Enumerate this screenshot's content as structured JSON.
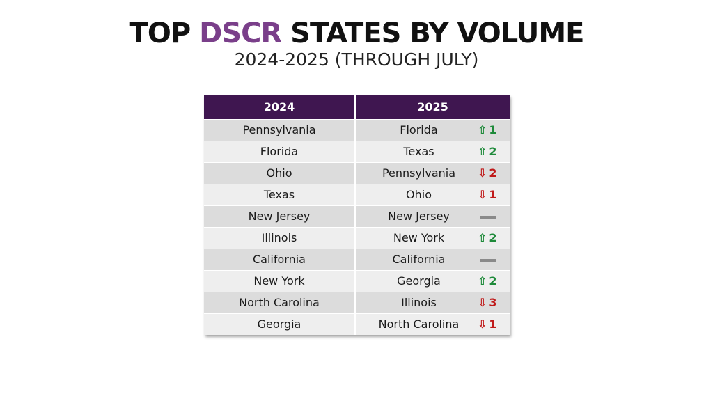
{
  "title": {
    "prefix": "TOP ",
    "accent": "DSCR",
    "suffix": " STATES BY VOLUME"
  },
  "subtitle": "2024-2025 (THROUGH JULY)",
  "table": {
    "headers": [
      "2024",
      "2025"
    ],
    "rows": [
      {
        "y2024": "Pennsylvania",
        "y2025": "Florida",
        "direction": "up",
        "arrow": "⇧",
        "change": "1"
      },
      {
        "y2024": "Florida",
        "y2025": "Texas",
        "direction": "up",
        "arrow": "⇧",
        "change": "2"
      },
      {
        "y2024": "Ohio",
        "y2025": "Pennsylvania",
        "direction": "down",
        "arrow": "⇩",
        "change": "2"
      },
      {
        "y2024": "Texas",
        "y2025": "Ohio",
        "direction": "down",
        "arrow": "⇩",
        "change": "1"
      },
      {
        "y2024": "New Jersey",
        "y2025": "New Jersey",
        "direction": "same",
        "arrow": "",
        "change": ""
      },
      {
        "y2024": "Illinois",
        "y2025": "New York",
        "direction": "up",
        "arrow": "⇧",
        "change": "2"
      },
      {
        "y2024": "California",
        "y2025": "California",
        "direction": "same",
        "arrow": "",
        "change": ""
      },
      {
        "y2024": "New York",
        "y2025": "Georgia",
        "direction": "up",
        "arrow": "⇧",
        "change": "2"
      },
      {
        "y2024": "North Carolina",
        "y2025": "Illinois",
        "direction": "down",
        "arrow": "⇩",
        "change": "3"
      },
      {
        "y2024": "Georgia",
        "y2025": "North Carolina",
        "direction": "down",
        "arrow": "⇩",
        "change": "1"
      }
    ]
  },
  "colors": {
    "header_bg": "#3f1650",
    "accent": "#7a3f8a",
    "up": "#1e8a3a",
    "down": "#c01a1a",
    "unchanged": "#8a8a8a"
  },
  "icons": {
    "up": "arrow-up-icon",
    "down": "arrow-down-icon",
    "same": "unchanged-dash-icon"
  }
}
